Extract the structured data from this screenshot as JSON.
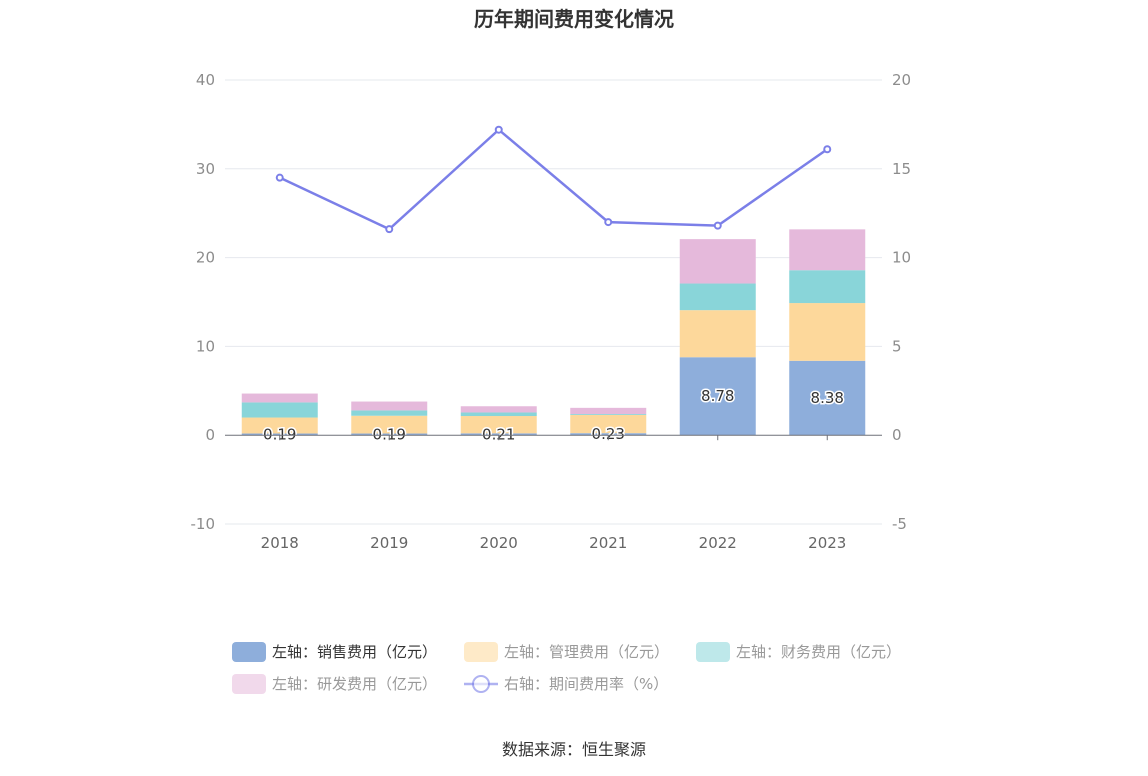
{
  "chart_data": {
    "type": "bar",
    "title": "历年期间费用变化情况",
    "categories": [
      "2018",
      "2019",
      "2020",
      "2021",
      "2022",
      "2023"
    ],
    "left_axis": {
      "ylim": [
        -10,
        40
      ],
      "ticks": [
        40,
        30,
        20,
        10,
        0,
        -10
      ]
    },
    "right_axis": {
      "ylim": [
        -5,
        20
      ],
      "ticks": [
        20,
        15,
        10,
        5,
        0,
        -5
      ]
    },
    "series": [
      {
        "name": "左轴：销售费用（亿元）",
        "axis": "left",
        "kind": "bar",
        "stack": "fee",
        "color": "#8eaedb",
        "values": [
          0.19,
          0.19,
          0.21,
          0.23,
          8.78,
          8.38
        ],
        "labels": [
          "0.19",
          "0.19",
          "0.21",
          "0.23",
          "8.78",
          "8.38"
        ]
      },
      {
        "name": "左轴：管理费用（亿元）",
        "axis": "left",
        "kind": "bar",
        "stack": "fee",
        "color": "#fdd89b",
        "values": [
          1.8,
          2.0,
          1.95,
          2.05,
          5.3,
          6.5
        ]
      },
      {
        "name": "左轴：财务费用（亿元）",
        "axis": "left",
        "kind": "bar",
        "stack": "fee",
        "color": "#89d5d9",
        "values": [
          1.7,
          0.6,
          0.4,
          0.1,
          3.0,
          3.7
        ]
      },
      {
        "name": "左轴：研发费用（亿元）",
        "axis": "left",
        "kind": "bar",
        "stack": "fee",
        "color": "#e5b9db",
        "values": [
          1.0,
          1.0,
          0.7,
          0.7,
          5.0,
          4.6
        ]
      },
      {
        "name": "右轴：期间费用率（%）",
        "axis": "right",
        "kind": "line",
        "color": "#7b7fe8",
        "values": [
          14.5,
          11.6,
          17.2,
          12.0,
          11.8,
          16.1
        ]
      }
    ],
    "grid": true,
    "legend_position": "bottom"
  },
  "source_text": "数据来源：恒生聚源"
}
